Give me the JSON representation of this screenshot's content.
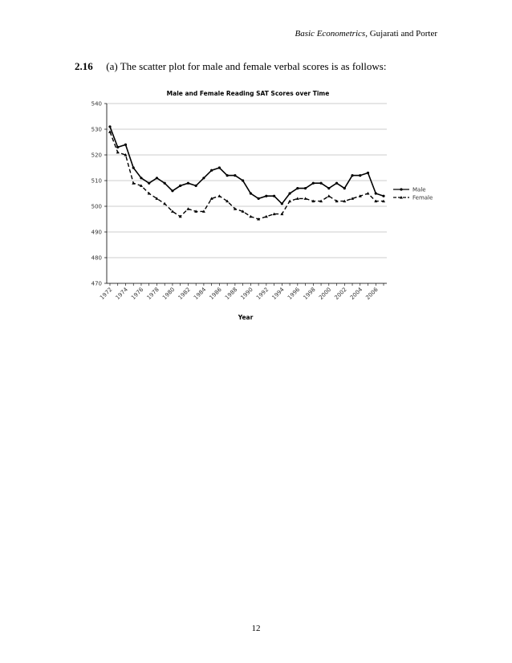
{
  "header": {
    "book_title": "Basic Econometrics",
    "authors": ", Gujarati and Porter"
  },
  "problem": {
    "number": "2.16",
    "text": "(a) The scatter plot for male and female verbal scores is as follows:"
  },
  "page_number": "12",
  "chart_data": {
    "type": "line",
    "title": "Male and Female Reading SAT Scores over Time",
    "xlabel": "Year",
    "ylabel": "",
    "ylim": [
      470,
      540
    ],
    "yticks": [
      470,
      480,
      490,
      500,
      510,
      520,
      530,
      540
    ],
    "grid": true,
    "legend_position": "right",
    "xtick_labels": [
      "1972",
      "1974",
      "1976",
      "1978",
      "1980",
      "1982",
      "1984",
      "1986",
      "1988",
      "1990",
      "1992",
      "1994",
      "1996",
      "1998",
      "2000",
      "2002",
      "2004",
      "2006"
    ],
    "x": [
      1972,
      1973,
      1974,
      1975,
      1976,
      1977,
      1978,
      1979,
      1980,
      1981,
      1982,
      1983,
      1984,
      1985,
      1986,
      1987,
      1988,
      1989,
      1990,
      1991,
      1992,
      1993,
      1994,
      1995,
      1996,
      1997,
      1998,
      1999,
      2000,
      2001,
      2002,
      2003,
      2004,
      2005,
      2006,
      2007
    ],
    "series": [
      {
        "name": "Male",
        "style": "solid",
        "marker": "circle",
        "values": [
          531,
          523,
          524,
          515,
          511,
          509,
          511,
          509,
          506,
          508,
          509,
          508,
          511,
          514,
          515,
          512,
          512,
          510,
          505,
          503,
          504,
          504,
          501,
          505,
          507,
          507,
          509,
          509,
          507,
          509,
          507,
          512,
          512,
          513,
          505,
          504
        ]
      },
      {
        "name": "Female",
        "style": "dashed",
        "marker": "triangle",
        "values": [
          529,
          521,
          520,
          509,
          508,
          505,
          503,
          501,
          498,
          496,
          499,
          498,
          498,
          503,
          504,
          502,
          499,
          498,
          496,
          495,
          496,
          497,
          497,
          502,
          503,
          503,
          502,
          502,
          504,
          502,
          502,
          503,
          504,
          505,
          502,
          502
        ]
      }
    ]
  }
}
